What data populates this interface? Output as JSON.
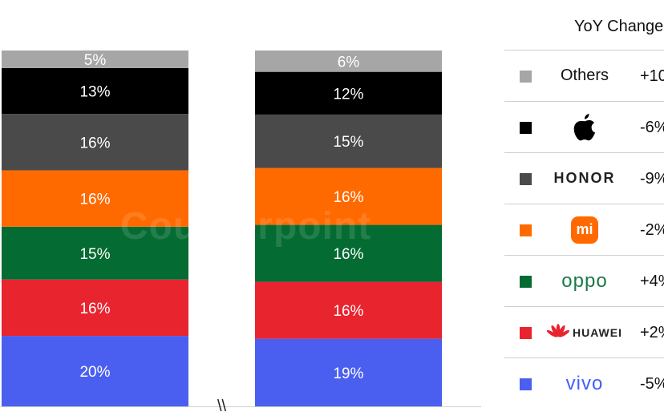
{
  "chart_data": {
    "type": "bar",
    "stacked": true,
    "normalized_percent": true,
    "bars": [
      {
        "segments": [
          {
            "series": "vivo",
            "value": 20,
            "label": "20%"
          },
          {
            "series": "HUAWEI",
            "value": 16,
            "label": "16%"
          },
          {
            "series": "oppo",
            "value": 15,
            "label": "15%"
          },
          {
            "series": "mi",
            "value": 16,
            "label": "16%"
          },
          {
            "series": "HONOR",
            "value": 16,
            "label": "16%"
          },
          {
            "series": "apple",
            "value": 13,
            "label": "13%"
          },
          {
            "series": "Others",
            "value": 5,
            "label": "5%"
          }
        ]
      },
      {
        "segments": [
          {
            "series": "vivo",
            "value": 19,
            "label": "19%"
          },
          {
            "series": "HUAWEI",
            "value": 16,
            "label": "16%"
          },
          {
            "series": "oppo",
            "value": 16,
            "label": "16%"
          },
          {
            "series": "mi",
            "value": 16,
            "label": "16%"
          },
          {
            "series": "HONOR",
            "value": 15,
            "label": "15%"
          },
          {
            "series": "apple",
            "value": 12,
            "label": "12%"
          },
          {
            "series": "Others",
            "value": 6,
            "label": "6%"
          }
        ]
      }
    ],
    "series_colors": {
      "vivo": "#4a5ff0",
      "HUAWEI": "#e8242f",
      "oppo": "#046b32",
      "mi": "#ff6a00",
      "HONOR": "#4a4a4a",
      "apple": "#000000",
      "Others": "#a6a6a6"
    },
    "axis_break_symbol": "\\\\",
    "watermark": "Counterpoint"
  },
  "legend": {
    "header": "YoY Change",
    "rows": [
      {
        "key": "Others",
        "brand_text": "Others",
        "yoy": "+10",
        "color": "#a6a6a6",
        "icon": "none"
      },
      {
        "key": "apple",
        "brand_text": "",
        "yoy": "-6%",
        "color": "#000000",
        "icon": "apple-logo-icon"
      },
      {
        "key": "HONOR",
        "brand_text": "HONOR",
        "yoy": "-9%",
        "color": "#4a4a4a",
        "icon": "none"
      },
      {
        "key": "mi",
        "brand_text": "mi",
        "yoy": "-2%",
        "color": "#ff6a00",
        "icon": "xiaomi-logo-icon"
      },
      {
        "key": "oppo",
        "brand_text": "oppo",
        "yoy": "+4%",
        "color": "#046b32",
        "icon": "none"
      },
      {
        "key": "HUAWEI",
        "brand_text": "HUAWEI",
        "yoy": "+2%",
        "color": "#e8242f",
        "icon": "huawei-petal-icon"
      },
      {
        "key": "vivo",
        "brand_text": "vivo",
        "yoy": "-5%",
        "color": "#4a5ff0",
        "icon": "none"
      }
    ]
  }
}
